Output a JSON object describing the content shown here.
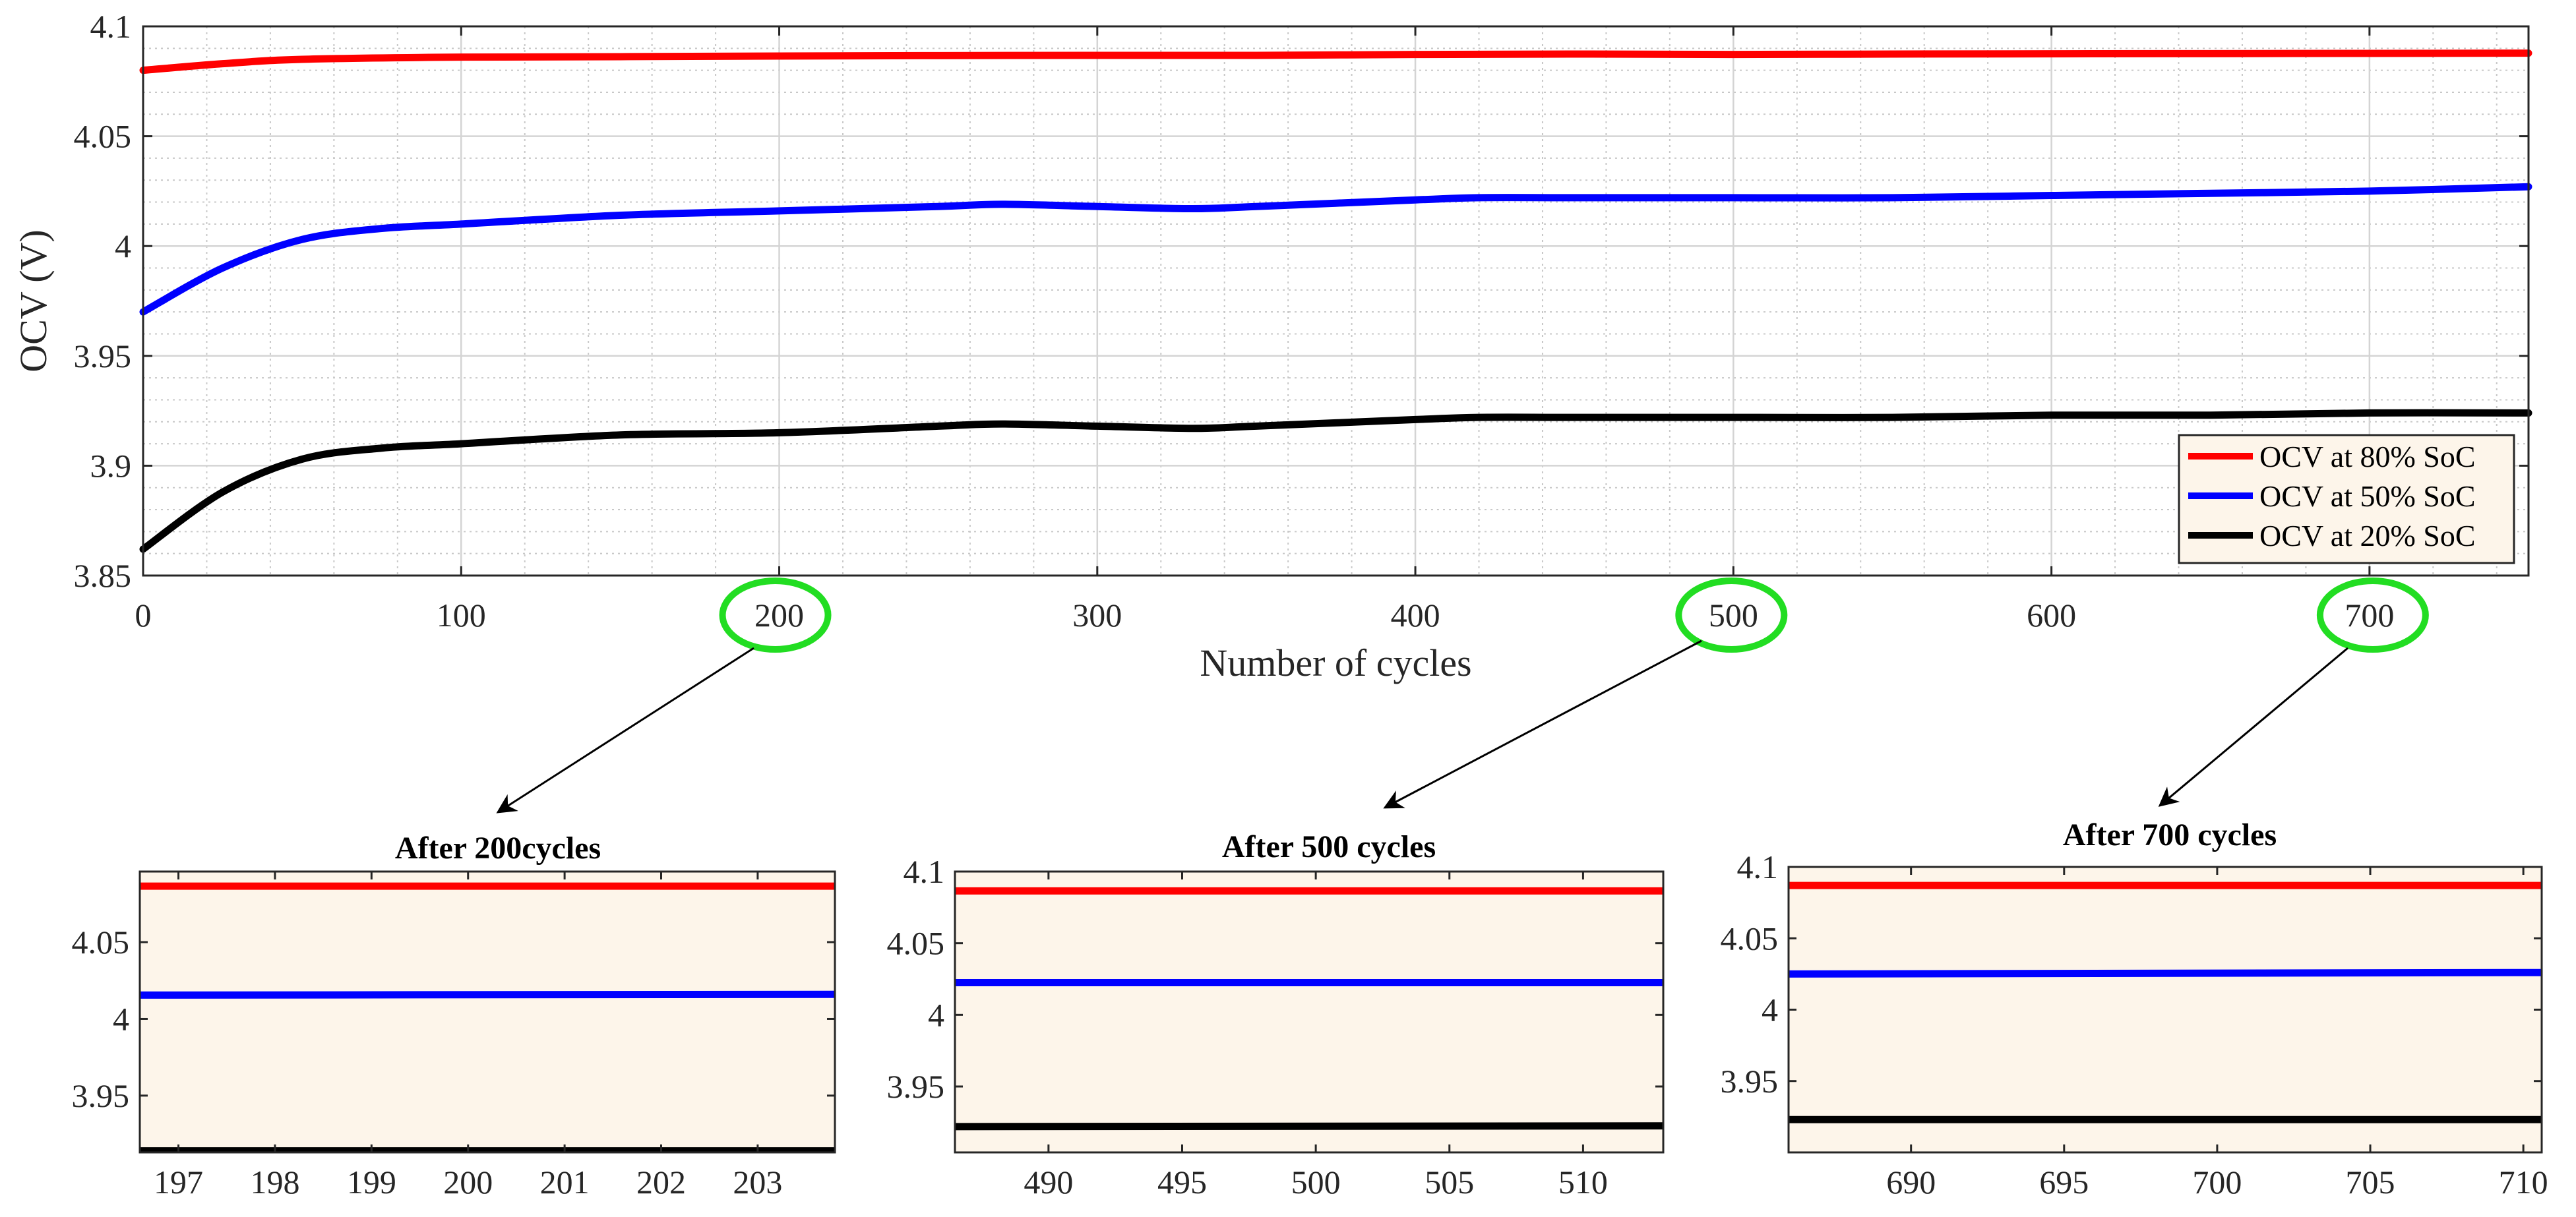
{
  "chart_data": {
    "main": {
      "type": "line",
      "xlabel": "Number of cycles",
      "ylabel": "OCV (V)",
      "xlim": [
        0,
        750
      ],
      "ylim": [
        3.85,
        4.1
      ],
      "xticks": [
        0,
        100,
        200,
        300,
        400,
        500,
        600,
        700
      ],
      "xtick_labels": [
        "0",
        "100",
        "200",
        "300",
        "400",
        "500",
        "600",
        "700"
      ],
      "yticks": [
        3.85,
        3.9,
        3.95,
        4.0,
        4.05,
        4.1
      ],
      "ytick_labels": [
        "3.85",
        "3.9",
        "3.95",
        "4",
        "4.05",
        "4.1"
      ],
      "grid": true,
      "legend_position": "bottom-right",
      "series": [
        {
          "name": "OCV at 80% SoC",
          "color": "#ff0000",
          "x": [
            0,
            25,
            50,
            100,
            150,
            200,
            250,
            300,
            350,
            400,
            450,
            500,
            550,
            600,
            650,
            700,
            750
          ],
          "y": [
            4.08,
            4.083,
            4.085,
            4.086,
            4.0862,
            4.0865,
            4.0867,
            4.0868,
            4.0868,
            4.0872,
            4.0874,
            4.0872,
            4.0874,
            4.0875,
            4.0876,
            4.0877,
            4.0878
          ]
        },
        {
          "name": "OCV at 50% SoC",
          "color": "#0000ff",
          "x": [
            0,
            25,
            50,
            75,
            100,
            150,
            200,
            250,
            270,
            300,
            330,
            350,
            400,
            420,
            450,
            500,
            550,
            600,
            650,
            700,
            750
          ],
          "y": [
            3.97,
            3.99,
            4.003,
            4.008,
            4.01,
            4.014,
            4.016,
            4.018,
            4.019,
            4.018,
            4.017,
            4.018,
            4.021,
            4.022,
            4.022,
            4.022,
            4.022,
            4.023,
            4.024,
            4.025,
            4.027
          ]
        },
        {
          "name": "OCV at 20% SoC",
          "color": "#000000",
          "x": [
            0,
            25,
            50,
            75,
            100,
            150,
            200,
            250,
            270,
            300,
            330,
            350,
            400,
            420,
            450,
            500,
            550,
            600,
            650,
            700,
            750
          ],
          "y": [
            3.862,
            3.888,
            3.903,
            3.908,
            3.91,
            3.914,
            3.915,
            3.918,
            3.919,
            3.918,
            3.917,
            3.918,
            3.921,
            3.922,
            3.922,
            3.922,
            3.922,
            3.923,
            3.923,
            3.924,
            3.924
          ]
        }
      ],
      "highlighted_ticks": [
        "200",
        "500",
        "700"
      ]
    },
    "insets": [
      {
        "title": "After 200cycles",
        "xlim": [
          196.6,
          203.8
        ],
        "ylim": [
          3.913,
          4.096
        ],
        "xticks": [
          197,
          198,
          199,
          200,
          201,
          202,
          203
        ],
        "xtick_labels": [
          "197",
          "198",
          "199",
          "200",
          "201",
          "202",
          "203"
        ],
        "yticks": [
          3.95,
          4.0,
          4.05
        ],
        "ytick_labels": [
          "3.95",
          "4",
          "4.05"
        ],
        "lines": [
          {
            "y0": 4.0865,
            "y1": 4.0865,
            "color": "#ff0000"
          },
          {
            "y0": 4.0155,
            "y1": 4.016,
            "color": "#0000ff"
          },
          {
            "y0": 3.914,
            "y1": 3.914,
            "color": "#000000"
          }
        ]
      },
      {
        "title": "After 500 cycles",
        "xlim": [
          486.5,
          513
        ],
        "ylim": [
          3.904,
          4.1
        ],
        "xticks": [
          490,
          495,
          500,
          505,
          510
        ],
        "xtick_labels": [
          "490",
          "495",
          "500",
          "505",
          "510"
        ],
        "yticks": [
          3.95,
          4.0,
          4.05,
          4.1
        ],
        "ytick_labels": [
          "3.95",
          "4",
          "4.05",
          "4.1"
        ],
        "lines": [
          {
            "y0": 4.0865,
            "y1": 4.0865,
            "color": "#ff0000"
          },
          {
            "y0": 4.0225,
            "y1": 4.0225,
            "color": "#0000ff"
          },
          {
            "y0": 3.922,
            "y1": 3.9225,
            "color": "#000000"
          }
        ]
      },
      {
        "title": "After 700 cycles",
        "xlim": [
          686,
          710.6
        ],
        "ylim": [
          3.9,
          4.1
        ],
        "xticks": [
          690,
          695,
          700,
          705,
          710
        ],
        "xtick_labels": [
          "690",
          "695",
          "700",
          "705",
          "710"
        ],
        "yticks": [
          3.95,
          4.0,
          4.05,
          4.1
        ],
        "ytick_labels": [
          "3.95",
          "4",
          "4.05",
          "4.1"
        ],
        "lines": [
          {
            "y0": 4.087,
            "y1": 4.087,
            "color": "#ff0000"
          },
          {
            "y0": 4.025,
            "y1": 4.026,
            "color": "#0000ff"
          },
          {
            "y0": 3.923,
            "y1": 3.923,
            "color": "#000000"
          }
        ]
      }
    ]
  }
}
